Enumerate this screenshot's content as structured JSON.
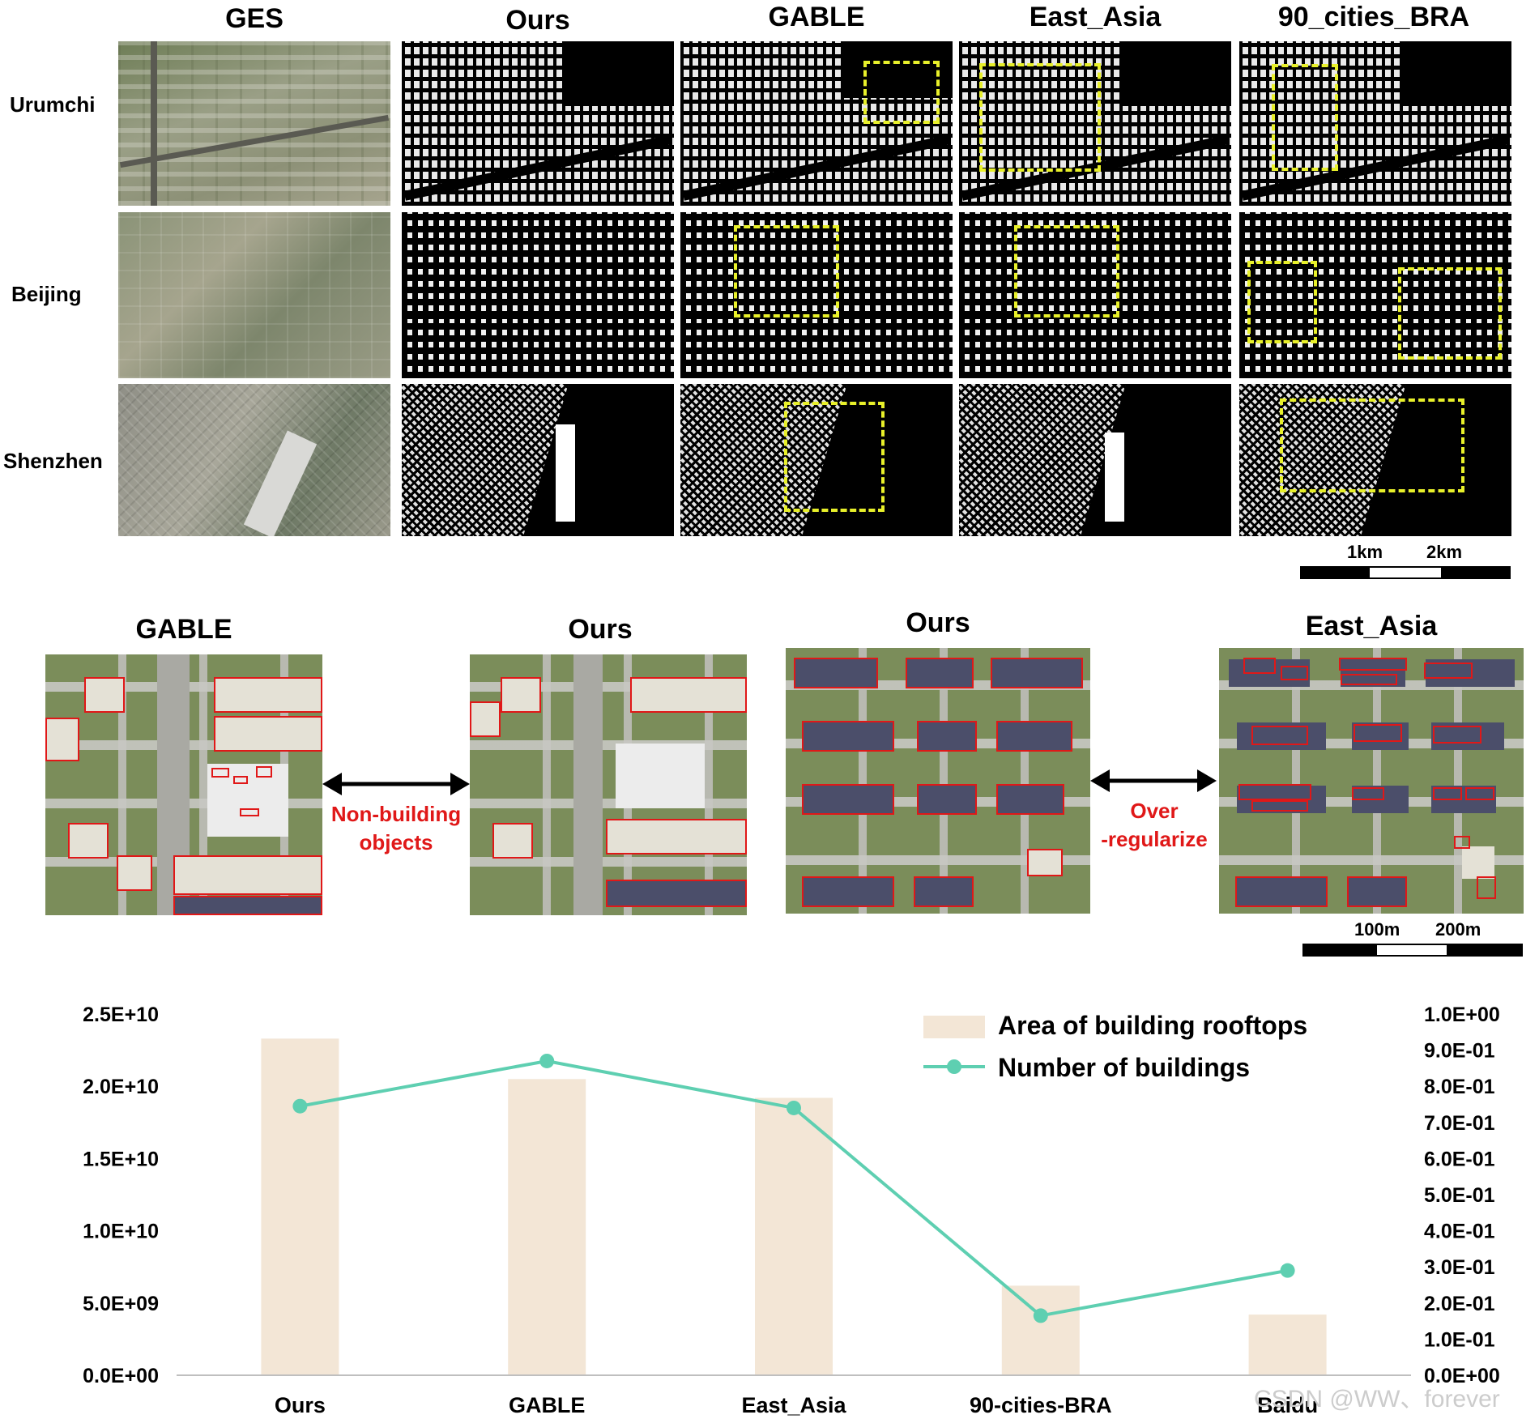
{
  "top_panel": {
    "column_headers": [
      "GES",
      "Ours",
      "GABLE",
      "East_Asia",
      "90_cities_BRA"
    ],
    "row_labels": [
      "Urumchi",
      "Beijing",
      "Shenzhen"
    ],
    "scale_labels": [
      "1km",
      "2km"
    ]
  },
  "middle_panel": {
    "left_titles": [
      "GABLE",
      "Ours"
    ],
    "right_titles": [
      "Ours",
      "East_Asia"
    ],
    "left_annotation": [
      "Non-building",
      "objects"
    ],
    "right_annotation": [
      "Over",
      "-regularize"
    ],
    "scale_labels": [
      "100m",
      "200m"
    ]
  },
  "colors": {
    "bar": "#f3e6d6",
    "line": "#5ecfb1",
    "highlight_box": "#e8f02a",
    "polygon": "#e01818",
    "annotation_text": "#e01818",
    "axis": "#bfbfbf"
  },
  "chart_data": {
    "type": "bar",
    "categories": [
      "Ours",
      "GABLE",
      "East_Asia",
      "90-cities-BRA",
      "Baidu"
    ],
    "series": [
      {
        "name": "Area of building rooftops",
        "type": "bar",
        "axis": "left",
        "values": [
          23300000000.0,
          20500000000.0,
          19200000000.0,
          6200000000.0,
          4200000000.0
        ]
      },
      {
        "name": "Number of buildings",
        "type": "line",
        "axis": "right",
        "values": [
          0.745,
          0.87,
          0.74,
          0.165,
          0.29
        ]
      }
    ],
    "y_left": {
      "lim": [
        0,
        25000000000.0
      ],
      "ticks": [
        0,
        5000000000.0,
        10000000000.0,
        15000000000.0,
        20000000000.0,
        25000000000.0
      ],
      "tick_labels": [
        "0.0E+00",
        "5.0E+09",
        "1.0E+10",
        "1.5E+10",
        "2.0E+10",
        "2.5E+10"
      ]
    },
    "y_right": {
      "lim": [
        0,
        1.0
      ],
      "ticks": [
        0,
        0.1,
        0.2,
        0.3,
        0.4,
        0.5,
        0.6,
        0.7,
        0.8,
        0.9,
        1.0
      ],
      "tick_labels": [
        "0.0E+00",
        "1.0E-01",
        "2.0E-01",
        "3.0E-01",
        "4.0E-01",
        "5.0E-01",
        "6.0E-01",
        "7.0E-01",
        "8.0E-01",
        "9.0E-01",
        "1.0E+00"
      ]
    },
    "grid": false,
    "legend": "top-right"
  },
  "watermark": "CSDN @WW、forever"
}
